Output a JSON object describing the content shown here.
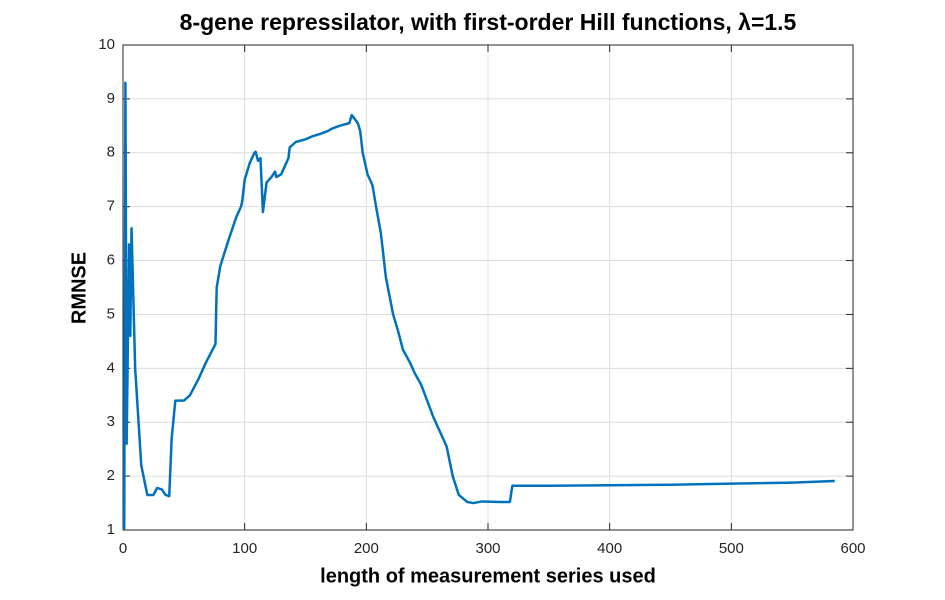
{
  "chart_data": {
    "type": "line",
    "title": "8-gene repressilator, with first-order Hill functions, λ=1.5",
    "xlabel": "length of measurement series used",
    "ylabel": "RMNSE",
    "color": "#0072BD",
    "grid": true,
    "xlim": [
      0,
      600
    ],
    "xticks": [
      0,
      100,
      200,
      300,
      400,
      500,
      600
    ],
    "ylim": [
      1,
      10
    ],
    "yticks": [
      1,
      2,
      3,
      4,
      5,
      6,
      7,
      8,
      9,
      10
    ],
    "x": [
      1,
      2,
      3,
      5,
      6,
      7,
      10,
      15,
      20,
      25,
      28,
      32,
      35,
      38,
      40,
      43,
      50,
      55,
      62,
      68,
      76,
      77,
      80,
      87,
      93,
      97,
      98,
      100,
      104,
      108,
      109,
      111,
      113,
      115,
      118,
      122,
      125,
      126,
      130,
      134,
      136,
      137,
      142,
      150,
      155,
      162,
      168,
      172,
      178,
      186,
      188,
      193,
      195,
      197,
      201,
      205,
      208,
      212,
      216,
      222,
      226,
      230,
      236,
      240,
      245,
      250,
      255,
      261,
      266,
      271,
      276,
      283,
      288,
      295,
      310,
      318,
      320,
      350,
      400,
      450,
      500,
      550,
      585
    ],
    "values": [
      1,
      9.3,
      2.6,
      6.3,
      4.6,
      6.6,
      4.0,
      2.2,
      1.65,
      1.65,
      1.78,
      1.75,
      1.65,
      1.63,
      2.7,
      3.4,
      3.4,
      3.5,
      3.8,
      4.1,
      4.45,
      5.5,
      5.9,
      6.4,
      6.8,
      7.0,
      7.1,
      7.5,
      7.8,
      8.0,
      8.02,
      7.85,
      7.9,
      6.9,
      7.45,
      7.55,
      7.65,
      7.55,
      7.6,
      7.8,
      7.9,
      8.1,
      8.2,
      8.25,
      8.3,
      8.35,
      8.4,
      8.45,
      8.5,
      8.55,
      8.7,
      8.55,
      8.4,
      8.0,
      7.6,
      7.4,
      7.0,
      6.5,
      5.7,
      5.0,
      4.7,
      4.35,
      4.1,
      3.9,
      3.7,
      3.4,
      3.1,
      2.8,
      2.55,
      2.0,
      1.65,
      1.52,
      1.5,
      1.53,
      1.52,
      1.52,
      1.82,
      1.82,
      1.83,
      1.84,
      1.86,
      1.88,
      1.91
    ]
  }
}
